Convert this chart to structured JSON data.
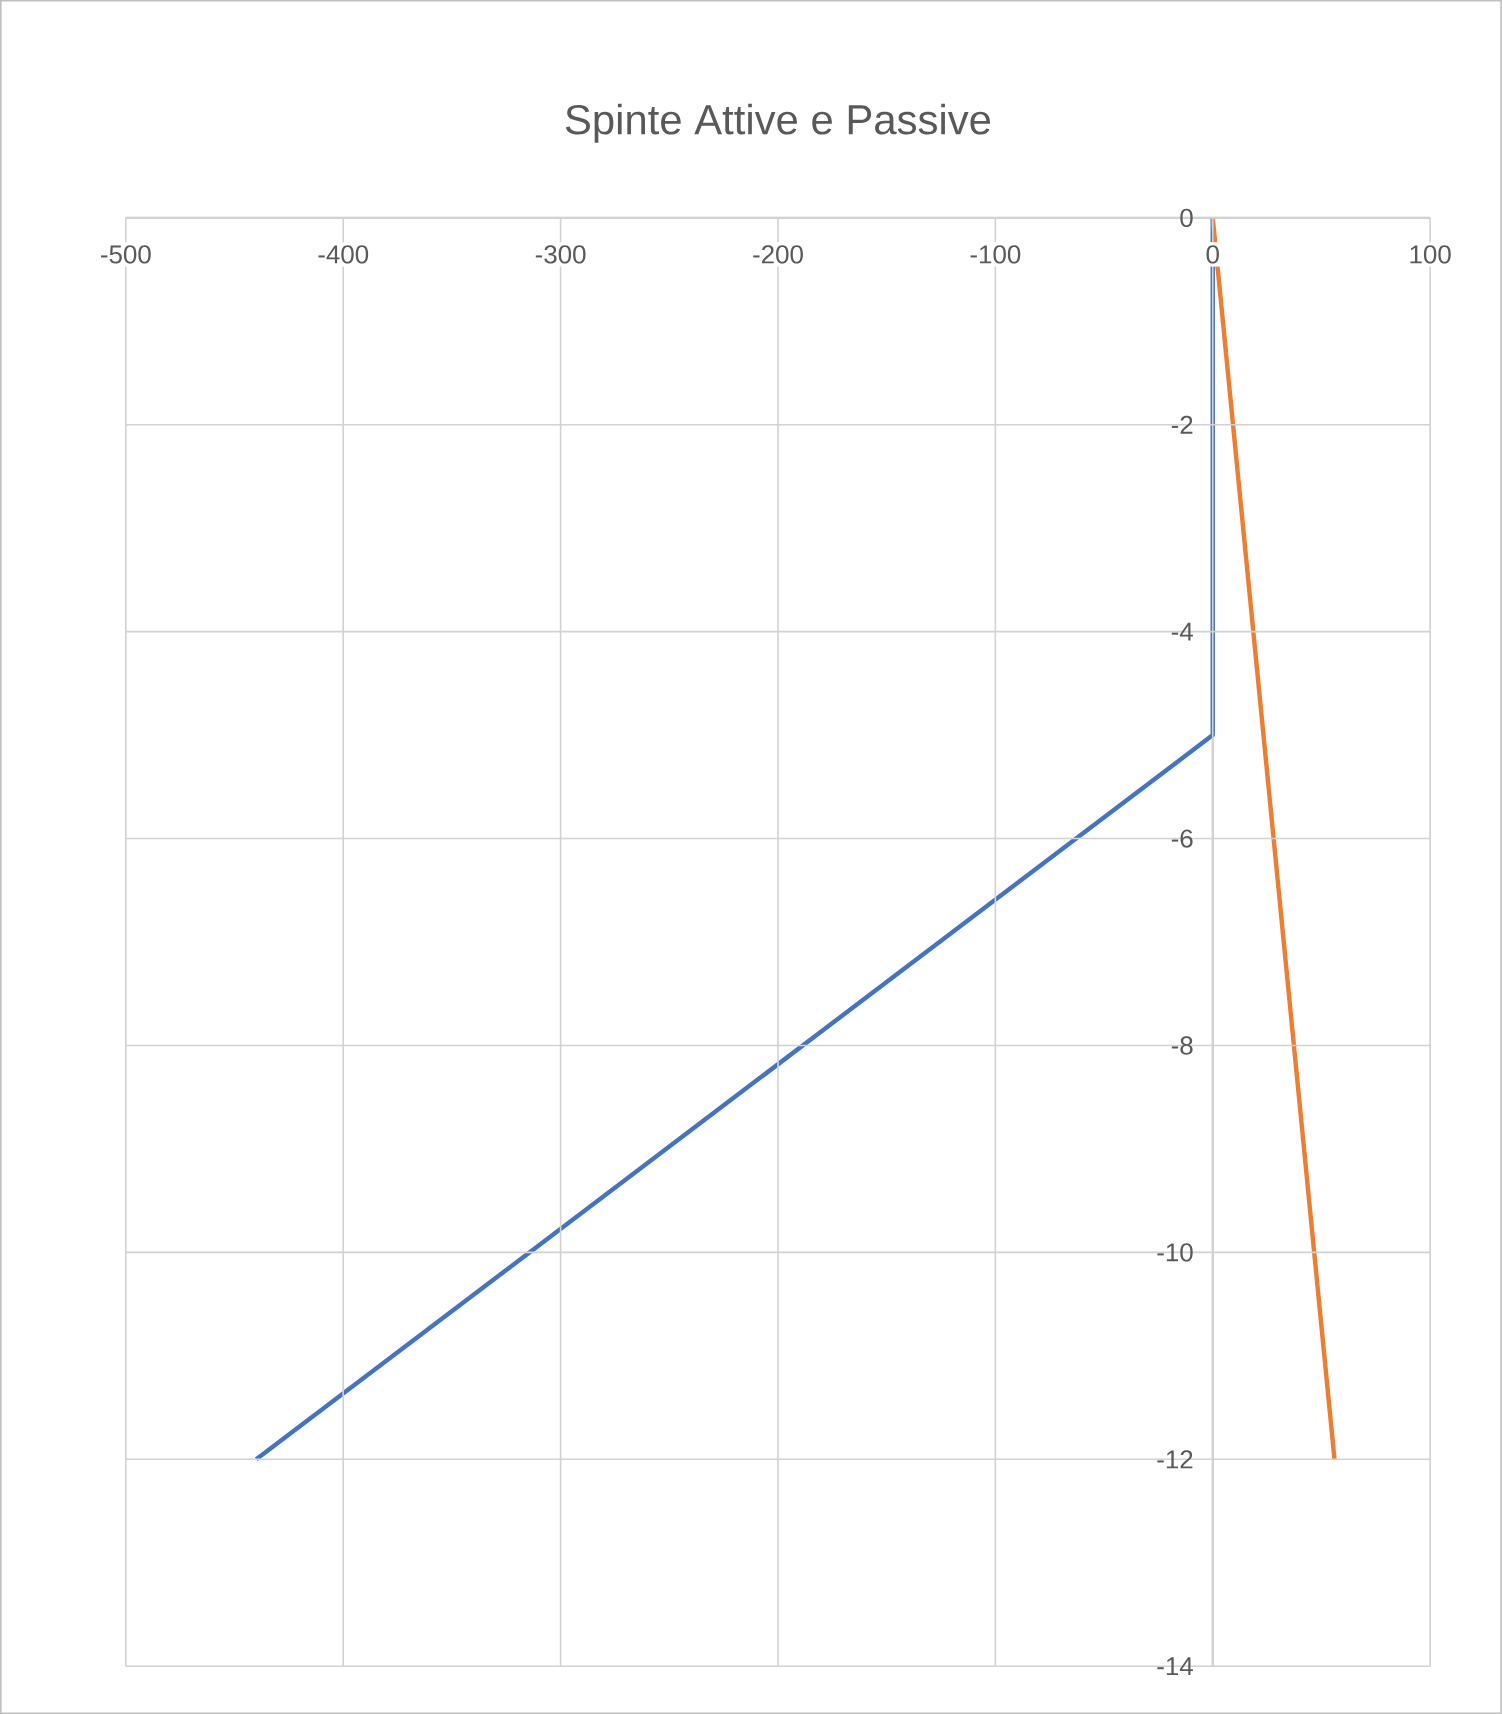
{
  "chart_data": {
    "type": "line",
    "title": "Spinte Attive e Passive",
    "xlim": [
      -500,
      100
    ],
    "xticks": [
      -500,
      -400,
      -300,
      -200,
      -100,
      0,
      100
    ],
    "ylim": [
      -14,
      0
    ],
    "yticks": [
      -14,
      -12,
      -10,
      -8,
      -6,
      -4,
      -2,
      0
    ],
    "grid": true,
    "marker": "none",
    "line_style": "solid",
    "series": [
      {
        "color": "#4472c4",
        "x": [
          0,
          0,
          -440
        ],
        "values": [
          0,
          -5,
          -12
        ]
      },
      {
        "color": "#ed7d31",
        "x": [
          0,
          56
        ],
        "values": [
          0,
          -12
        ]
      }
    ]
  }
}
